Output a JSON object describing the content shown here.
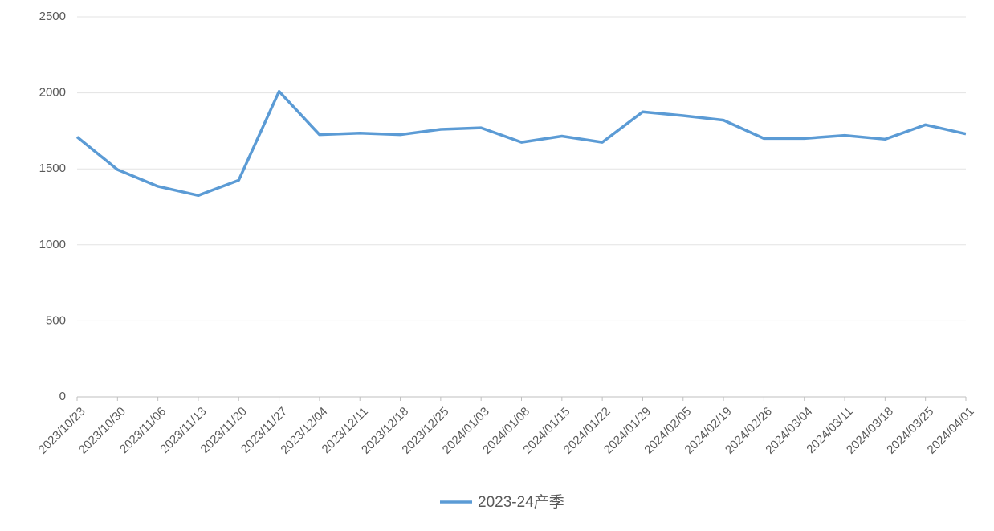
{
  "chart_data": {
    "type": "line",
    "categories": [
      "2023/10/23",
      "2023/10/30",
      "2023/11/06",
      "2023/11/13",
      "2023/11/20",
      "2023/11/27",
      "2023/12/04",
      "2023/12/11",
      "2023/12/18",
      "2023/12/25",
      "2024/01/03",
      "2024/01/08",
      "2024/01/15",
      "2024/01/22",
      "2024/01/29",
      "2024/02/05",
      "2024/02/19",
      "2024/02/26",
      "2024/03/04",
      "2024/03/11",
      "2024/03/18",
      "2024/03/25",
      "2024/04/01"
    ],
    "series": [
      {
        "name": "2023-24产季",
        "color": "#5b9bd5",
        "values": [
          1710,
          1495,
          1385,
          1325,
          1425,
          2010,
          1725,
          1735,
          1725,
          1760,
          1770,
          1675,
          1715,
          1675,
          1875,
          1850,
          1820,
          1700,
          1700,
          1720,
          1695,
          1790,
          1730
        ]
      }
    ],
    "ylim": [
      0,
      2500
    ],
    "yticks": [
      0,
      500,
      1000,
      1500,
      2000,
      2500
    ],
    "grid": true,
    "legend": "bottom"
  }
}
